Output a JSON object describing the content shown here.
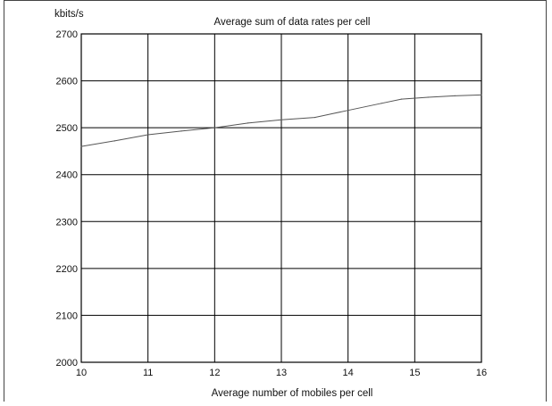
{
  "chart_data": {
    "type": "line",
    "title": "Average sum of data rates per cell",
    "xlabel": "Average number of mobiles per cell",
    "ylabel": "kbits/s",
    "xlim": [
      10,
      16
    ],
    "ylim": [
      2000,
      2700
    ],
    "x_ticks": [
      "10",
      "11",
      "12",
      "13",
      "14",
      "15",
      "16"
    ],
    "y_ticks": [
      "2000",
      "2100",
      "2200",
      "2300",
      "2400",
      "2500",
      "2600",
      "2700"
    ],
    "grid": true,
    "series": [
      {
        "x": [
          10,
          10.5,
          11,
          11.5,
          12,
          12.5,
          13,
          13.5,
          14,
          14.5,
          14.8,
          15.2,
          15.6,
          16
        ],
        "y": [
          2460,
          2472,
          2485,
          2493,
          2500,
          2510,
          2517,
          2522,
          2537,
          2552,
          2561,
          2565,
          2568,
          2570
        ]
      }
    ],
    "colors": {
      "line": "#555555",
      "grid": "#000000",
      "axes": "#000000"
    }
  }
}
